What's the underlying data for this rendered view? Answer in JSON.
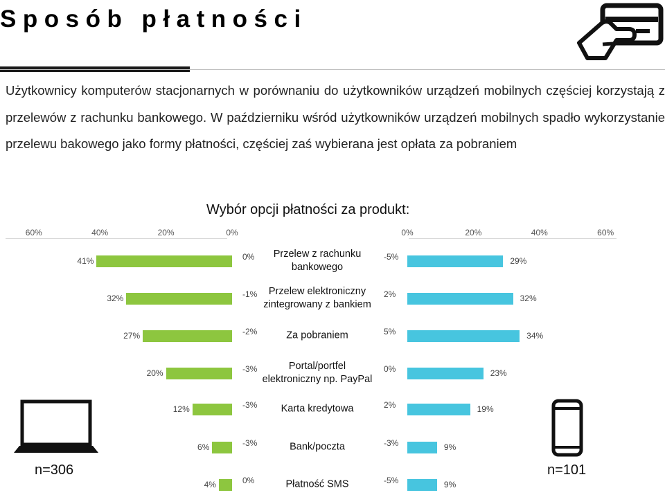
{
  "header": {
    "title": "Sposób płatności"
  },
  "description": "Użytkownicy komputerów stacjonarnych w porównaniu do użytkowników urządzeń mobilnych częściej korzystają z przelewów z rachunku bankowego. W październiku wśród użytkowników urządzeń mobilnych spadło wykorzystanie przelewu bakowego jako formy płatności, częściej zaś wybierana jest opłata za pobraniem",
  "icons": {
    "payment": "hand-with-card-icon",
    "desktop": "laptop-icon",
    "mobile": "smartphone-icon"
  },
  "colors": {
    "desktop_bar": "#8dc63f",
    "mobile_bar": "#47c5df"
  },
  "samples": {
    "desktop": "n=306",
    "mobile": "n=101"
  },
  "chart_data": {
    "type": "bar",
    "title": "Wybór opcji płatności za produkt:",
    "orientation": "horizontal-butterfly",
    "left_axis_ticks": [
      "60%",
      "40%",
      "20%",
      "0%"
    ],
    "right_axis_ticks": [
      "0%",
      "20%",
      "40%",
      "60%"
    ],
    "xlim": [
      0,
      60
    ],
    "categories": [
      "Przelew z rachunku bankowego",
      "Przelew elektroniczny zintegrowany z bankiem",
      "Za pobraniem",
      "Portal/portfel elektroniczny np. PayPal",
      "Karta kredytowa",
      "Bank/poczta",
      "Płatność SMS"
    ],
    "series": [
      {
        "values": [
          41,
          32,
          27,
          20,
          12,
          6,
          4
        ],
        "labels": [
          "41%",
          "32%",
          "27%",
          "20%",
          "12%",
          "6%",
          "4%"
        ],
        "change_labels": [
          "0%",
          "-1%",
          "-2%",
          "-3%",
          "-3%",
          "-3%",
          "0%"
        ]
      },
      {
        "values": [
          29,
          32,
          34,
          23,
          19,
          9,
          9
        ],
        "labels": [
          "29%",
          "32%",
          "34%",
          "23%",
          "19%",
          "9%",
          "9%"
        ],
        "change_labels": [
          "-5%",
          "2%",
          "5%",
          "0%",
          "2%",
          "-3%",
          "-5%"
        ]
      }
    ],
    "legend": "none",
    "grid": false
  }
}
